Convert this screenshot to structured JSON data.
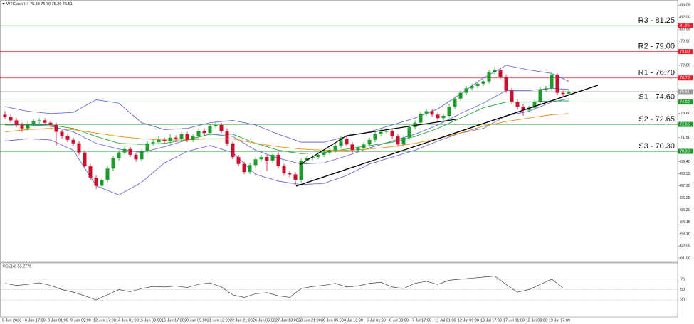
{
  "chart_data": [
    {
      "type": "candlestick",
      "title": "WTICash,H4 75.33 75.70 75.26 75.51",
      "up_color": "#1f9a2c",
      "down_color": "#c8102e",
      "ylim": [
        60.7,
        83.25
      ],
      "yticks": [
        {
          "value": 61.0,
          "label": "61.00"
        },
        62.05,
        {
          "value": 63.1,
          "label": "63.10"
        },
        64.15,
        {
          "value": 65.2,
          "label": "65.20"
        },
        66.25,
        {
          "value": 67.3,
          "label": "67.30"
        },
        68.35,
        {
          "value": 69.4,
          "label": "69.40"
        },
        {
          "value": 71.5,
          "label": "71.50"
        },
        {
          "value": 73.6,
          "label": "73.60"
        },
        {
          "value": 77.8,
          "label": "77.80"
        },
        {
          "value": 79.9,
          "label": "79.90"
        },
        80.95,
        {
          "value": 82.0,
          "label": "82.00"
        },
        83.05
      ],
      "categories": [
        "5 Jun 2023",
        null,
        null,
        null,
        "6 Jun 17:00",
        null,
        null,
        null,
        "8 Jun 01:00",
        null,
        null,
        null,
        "9 Jun 09:00",
        null,
        null,
        null,
        "12 Jun 17:00",
        null,
        null,
        null,
        "14 Jun 01:00",
        null,
        null,
        null,
        "15 Jun 09:00",
        null,
        null,
        null,
        "16 Jun 17:00",
        null,
        null,
        null,
        "20 Jun 05:00",
        null,
        null,
        null,
        "21 Jun 13:00",
        null,
        null,
        null,
        "22 Jun 21:00",
        null,
        null,
        null,
        "26 Jun 05:00",
        null,
        null,
        null,
        "27 Jun 13:00",
        null,
        null,
        null,
        "28 Jun 21:00",
        null,
        null,
        null,
        "30 Jun 05:00",
        null,
        null,
        null,
        "3 Jul 13:00",
        null,
        null,
        null,
        "5 Jul 01:00",
        null,
        null,
        null,
        "6 Jul 09:00",
        null,
        null,
        null,
        "7 Jul 17:00",
        null,
        null,
        null,
        "11 Jul 01:00",
        null,
        null,
        null,
        "12 Jul 09:00",
        null,
        null,
        null,
        "13 Jul 17:00",
        null,
        null,
        null,
        "17 Jul 01:00",
        null,
        null,
        null,
        "18 Jul 09:00",
        null,
        null,
        null,
        "19 Jul 17:00",
        null,
        null,
        null
      ],
      "candles": [
        [
          73.5,
          73.8,
          73.1,
          73.3
        ],
        [
          73.3,
          73.5,
          72.8,
          73.0
        ],
        [
          73.0,
          73.2,
          72.4,
          72.6
        ],
        [
          72.6,
          72.8,
          72.0,
          72.3
        ],
        [
          72.3,
          72.9,
          72.1,
          72.7
        ],
        [
          72.7,
          73.1,
          72.5,
          72.9
        ],
        [
          72.9,
          73.2,
          72.7,
          73.0
        ],
        [
          73.0,
          73.2,
          72.6,
          72.8
        ],
        [
          72.8,
          73.0,
          72.4,
          72.6
        ],
        [
          72.6,
          72.8,
          70.8,
          72.0
        ],
        [
          72.0,
          72.2,
          71.4,
          71.6
        ],
        [
          71.6,
          71.8,
          71.1,
          71.3
        ],
        [
          71.3,
          71.5,
          70.8,
          71.0
        ],
        [
          71.0,
          71.2,
          70.0,
          70.2
        ],
        [
          70.2,
          70.4,
          68.8,
          69.0
        ],
        [
          69.0,
          69.2,
          67.8,
          68.0
        ],
        [
          68.0,
          68.2,
          67.0,
          67.3
        ],
        [
          67.3,
          68.0,
          67.1,
          67.8
        ],
        [
          67.8,
          69.0,
          67.6,
          68.8
        ],
        [
          68.8,
          69.9,
          68.6,
          69.7
        ],
        [
          69.7,
          70.4,
          69.5,
          70.2
        ],
        [
          70.2,
          70.8,
          70.0,
          70.5
        ],
        [
          70.5,
          70.7,
          69.8,
          70.0
        ],
        [
          70.0,
          70.2,
          69.4,
          69.6
        ],
        [
          69.6,
          70.5,
          69.4,
          70.3
        ],
        [
          70.3,
          71.2,
          70.1,
          71.0
        ],
        [
          71.0,
          71.4,
          70.8,
          71.1
        ],
        [
          71.1,
          71.6,
          70.9,
          71.3
        ],
        [
          71.3,
          71.5,
          71.0,
          71.2
        ],
        [
          71.2,
          71.8,
          71.0,
          71.5
        ],
        [
          71.5,
          71.7,
          71.2,
          71.4
        ],
        [
          71.4,
          72.0,
          71.2,
          71.8
        ],
        [
          71.8,
          72.0,
          71.1,
          71.3
        ],
        [
          71.3,
          71.8,
          71.1,
          71.6
        ],
        [
          71.6,
          72.3,
          71.4,
          72.1
        ],
        [
          72.1,
          72.3,
          71.7,
          71.9
        ],
        [
          71.9,
          72.7,
          71.7,
          72.5
        ],
        [
          72.5,
          72.9,
          72.3,
          72.6
        ],
        [
          72.6,
          72.8,
          71.9,
          72.1
        ],
        [
          72.1,
          72.3,
          70.8,
          71.0
        ],
        [
          71.0,
          71.2,
          69.6,
          69.8
        ],
        [
          69.8,
          70.0,
          69.0,
          69.2
        ],
        [
          69.2,
          69.4,
          68.3,
          68.5
        ],
        [
          68.5,
          69.3,
          68.3,
          69.1
        ],
        [
          69.1,
          69.8,
          68.9,
          69.6
        ],
        [
          69.6,
          70.0,
          69.4,
          69.8
        ],
        [
          69.8,
          70.0,
          68.6,
          69.5
        ],
        [
          69.5,
          70.2,
          69.3,
          70.0
        ],
        [
          70.0,
          70.2,
          68.8,
          69.0
        ],
        [
          69.0,
          69.2,
          68.2,
          68.4
        ],
        [
          68.4,
          68.6,
          68.0,
          68.3
        ],
        [
          68.3,
          68.5,
          67.4,
          67.8
        ],
        [
          67.8,
          69.7,
          67.6,
          69.5
        ],
        [
          69.5,
          69.9,
          69.3,
          69.7
        ],
        [
          69.7,
          70.0,
          69.5,
          69.8
        ],
        [
          69.8,
          70.2,
          69.6,
          70.0
        ],
        [
          70.0,
          70.4,
          69.8,
          70.2
        ],
        [
          70.2,
          70.6,
          70.0,
          70.4
        ],
        [
          70.4,
          71.0,
          70.2,
          70.8
        ],
        [
          70.8,
          71.6,
          70.6,
          71.4
        ],
        [
          71.4,
          71.6,
          70.7,
          70.9
        ],
        [
          70.9,
          71.1,
          70.2,
          70.4
        ],
        [
          70.4,
          70.8,
          70.2,
          70.6
        ],
        [
          70.6,
          71.1,
          70.4,
          70.9
        ],
        [
          70.9,
          71.5,
          70.7,
          71.3
        ],
        [
          71.3,
          72.0,
          71.1,
          71.8
        ],
        [
          71.8,
          72.2,
          71.6,
          72.0
        ],
        [
          72.0,
          72.3,
          71.8,
          72.1
        ],
        [
          72.1,
          72.3,
          71.4,
          71.6
        ],
        [
          71.6,
          71.8,
          70.7,
          70.9
        ],
        [
          70.9,
          71.7,
          70.7,
          71.5
        ],
        [
          71.5,
          72.6,
          71.3,
          72.4
        ],
        [
          72.4,
          73.0,
          72.2,
          72.8
        ],
        [
          72.8,
          73.8,
          72.6,
          73.6
        ],
        [
          73.6,
          74.0,
          73.4,
          73.8
        ],
        [
          73.8,
          74.0,
          73.3,
          73.5
        ],
        [
          73.5,
          73.7,
          73.0,
          73.2
        ],
        [
          73.2,
          73.6,
          73.0,
          73.4
        ],
        [
          73.4,
          74.4,
          73.2,
          74.2
        ],
        [
          74.2,
          75.1,
          74.0,
          74.9
        ],
        [
          74.9,
          75.6,
          74.7,
          75.4
        ],
        [
          75.4,
          76.0,
          75.2,
          75.8
        ],
        [
          75.8,
          76.2,
          75.6,
          76.0
        ],
        [
          76.0,
          76.4,
          75.8,
          76.2
        ],
        [
          76.2,
          76.6,
          76.0,
          76.4
        ],
        [
          76.4,
          77.4,
          76.2,
          77.2
        ],
        [
          77.2,
          77.7,
          77.0,
          77.4
        ],
        [
          77.4,
          77.6,
          76.6,
          76.8
        ],
        [
          76.8,
          77.0,
          75.4,
          75.6
        ],
        [
          75.6,
          75.8,
          74.4,
          74.6
        ],
        [
          74.6,
          74.8,
          74.0,
          74.2
        ],
        [
          74.2,
          74.4,
          73.4,
          73.9
        ],
        [
          73.9,
          74.3,
          73.7,
          74.1
        ],
        [
          74.1,
          74.8,
          73.9,
          74.6
        ],
        [
          74.6,
          75.9,
          74.4,
          75.7
        ],
        [
          75.7,
          76.0,
          75.5,
          75.8
        ],
        [
          75.8,
          77.2,
          75.6,
          77.0
        ],
        [
          77.0,
          77.1,
          75.2,
          75.4
        ],
        [
          75.4,
          75.6,
          75.1,
          75.3
        ],
        [
          75.33,
          75.7,
          75.26,
          75.51
        ]
      ],
      "series": [
        {
          "color": "#6a6ad8",
          "x": [
            0,
            4,
            8,
            12,
            16,
            20,
            24,
            28,
            32,
            36,
            40,
            44,
            48,
            52,
            56,
            60,
            64,
            68,
            72,
            76,
            80,
            84,
            88,
            92,
            96,
            99
          ],
          "values": [
            74.2,
            73.8,
            73.6,
            73.7,
            74.8,
            74.5,
            72.8,
            72.2,
            72.3,
            72.8,
            73.0,
            72.6,
            71.8,
            71.1,
            71.1,
            71.6,
            72.0,
            72.6,
            73.2,
            74.0,
            75.3,
            76.7,
            77.8,
            77.4,
            77.1,
            76.4
          ]
        },
        {
          "color": "#6a6ad8",
          "x": [
            0,
            4,
            8,
            12,
            16,
            20,
            24,
            28,
            32,
            36,
            40,
            44,
            48,
            52,
            56,
            60,
            64,
            68,
            72,
            76,
            80,
            84,
            88,
            92,
            96,
            99
          ],
          "values": [
            72.7,
            72.6,
            72.5,
            72.0,
            71.0,
            70.5,
            70.2,
            70.7,
            71.3,
            71.8,
            71.6,
            70.4,
            69.7,
            69.2,
            69.3,
            69.9,
            70.6,
            71.2,
            71.8,
            72.6,
            73.6,
            74.5,
            75.6,
            75.6,
            75.8,
            75.7
          ]
        },
        {
          "color": "#6a6ad8",
          "x": [
            0,
            4,
            8,
            12,
            16,
            20,
            24,
            28,
            32,
            36,
            40,
            44,
            48,
            52,
            56,
            60,
            64,
            68,
            72,
            76,
            80,
            84,
            88,
            92,
            96,
            99
          ],
          "values": [
            71.2,
            71.4,
            71.3,
            70.4,
            67.3,
            66.5,
            67.6,
            69.3,
            70.3,
            70.8,
            70.2,
            68.3,
            67.7,
            67.4,
            67.5,
            68.2,
            69.2,
            69.8,
            70.4,
            71.2,
            71.9,
            72.3,
            73.4,
            73.8,
            74.6,
            74.9
          ]
        },
        {
          "color": "#22a83a",
          "x": [
            0,
            4,
            8,
            12,
            16,
            20,
            24,
            28,
            32,
            36,
            40,
            44,
            48,
            52,
            56,
            60,
            64,
            68,
            72,
            76,
            80,
            84,
            88,
            92,
            96,
            99
          ],
          "values": [
            72.6,
            72.6,
            72.6,
            72.3,
            71.6,
            71.0,
            70.9,
            71.0,
            71.3,
            71.8,
            71.8,
            71.0,
            70.4,
            70.1,
            70.2,
            70.5,
            70.8,
            71.1,
            71.6,
            72.3,
            73.2,
            74.1,
            74.6,
            74.6,
            74.7,
            74.7
          ]
        },
        {
          "color": "#f08a10",
          "x": [
            0,
            4,
            8,
            12,
            16,
            20,
            24,
            28,
            32,
            36,
            40,
            44,
            48,
            52,
            56,
            60,
            64,
            68,
            72,
            76,
            80,
            84,
            88,
            92,
            96,
            99
          ],
          "values": [
            72.0,
            72.2,
            72.3,
            72.2,
            71.9,
            71.6,
            71.4,
            71.3,
            71.3,
            71.4,
            71.4,
            71.0,
            70.7,
            70.5,
            70.4,
            70.4,
            70.5,
            70.7,
            71.0,
            71.4,
            71.9,
            72.5,
            72.9,
            73.2,
            73.5,
            73.6
          ]
        }
      ],
      "levels": [
        {
          "label": "R3 - 81.25",
          "value": 81.25,
          "value_label": "81.25",
          "color": "#e8202a"
        },
        {
          "label": "R2 - 79.00",
          "value": 79.0,
          "value_label": "79.00",
          "color": "#e8202a"
        },
        {
          "label": "R1 - 76.70",
          "value": 76.7,
          "value_label": "76.70",
          "color": "#e8202a"
        },
        {
          "label": "S1 - 74.60",
          "value": 74.6,
          "value_label": "74.60",
          "color": "#1f9a2c"
        },
        {
          "label": "S2 - 72.65",
          "value": 72.65,
          "value_label": "72.65",
          "color": "#1f9a2c"
        },
        {
          "label": "S3 - 70.30",
          "value": 70.3,
          "value_label": "70.30",
          "color": "#1f9a2c"
        }
      ],
      "last_price": 75.51,
      "last_price_color": "#9a9a9a"
    },
    {
      "type": "line",
      "title": "RSI(14) 53.2778",
      "color": "#444444",
      "ylim": [
        0,
        100
      ],
      "yticks": [
        70,
        50,
        30
      ],
      "x": [
        0,
        2,
        4,
        6,
        8,
        10,
        12,
        14,
        16,
        18,
        20,
        22,
        24,
        26,
        28,
        30,
        32,
        34,
        36,
        38,
        40,
        42,
        44,
        46,
        48,
        50,
        52,
        54,
        56,
        58,
        60,
        62,
        64,
        66,
        68,
        70,
        72,
        74,
        76,
        78,
        80,
        82,
        84,
        86,
        88,
        90,
        92,
        94,
        96,
        98
      ],
      "values": [
        62,
        58,
        60,
        63,
        58,
        50,
        45,
        38,
        30,
        40,
        50,
        46,
        52,
        56,
        55,
        57,
        54,
        60,
        63,
        55,
        40,
        35,
        42,
        44,
        38,
        35,
        52,
        56,
        58,
        62,
        55,
        57,
        62,
        64,
        55,
        52,
        62,
        66,
        60,
        68,
        70,
        72,
        74,
        76,
        60,
        45,
        50,
        60,
        70,
        53.2778
      ]
    }
  ]
}
